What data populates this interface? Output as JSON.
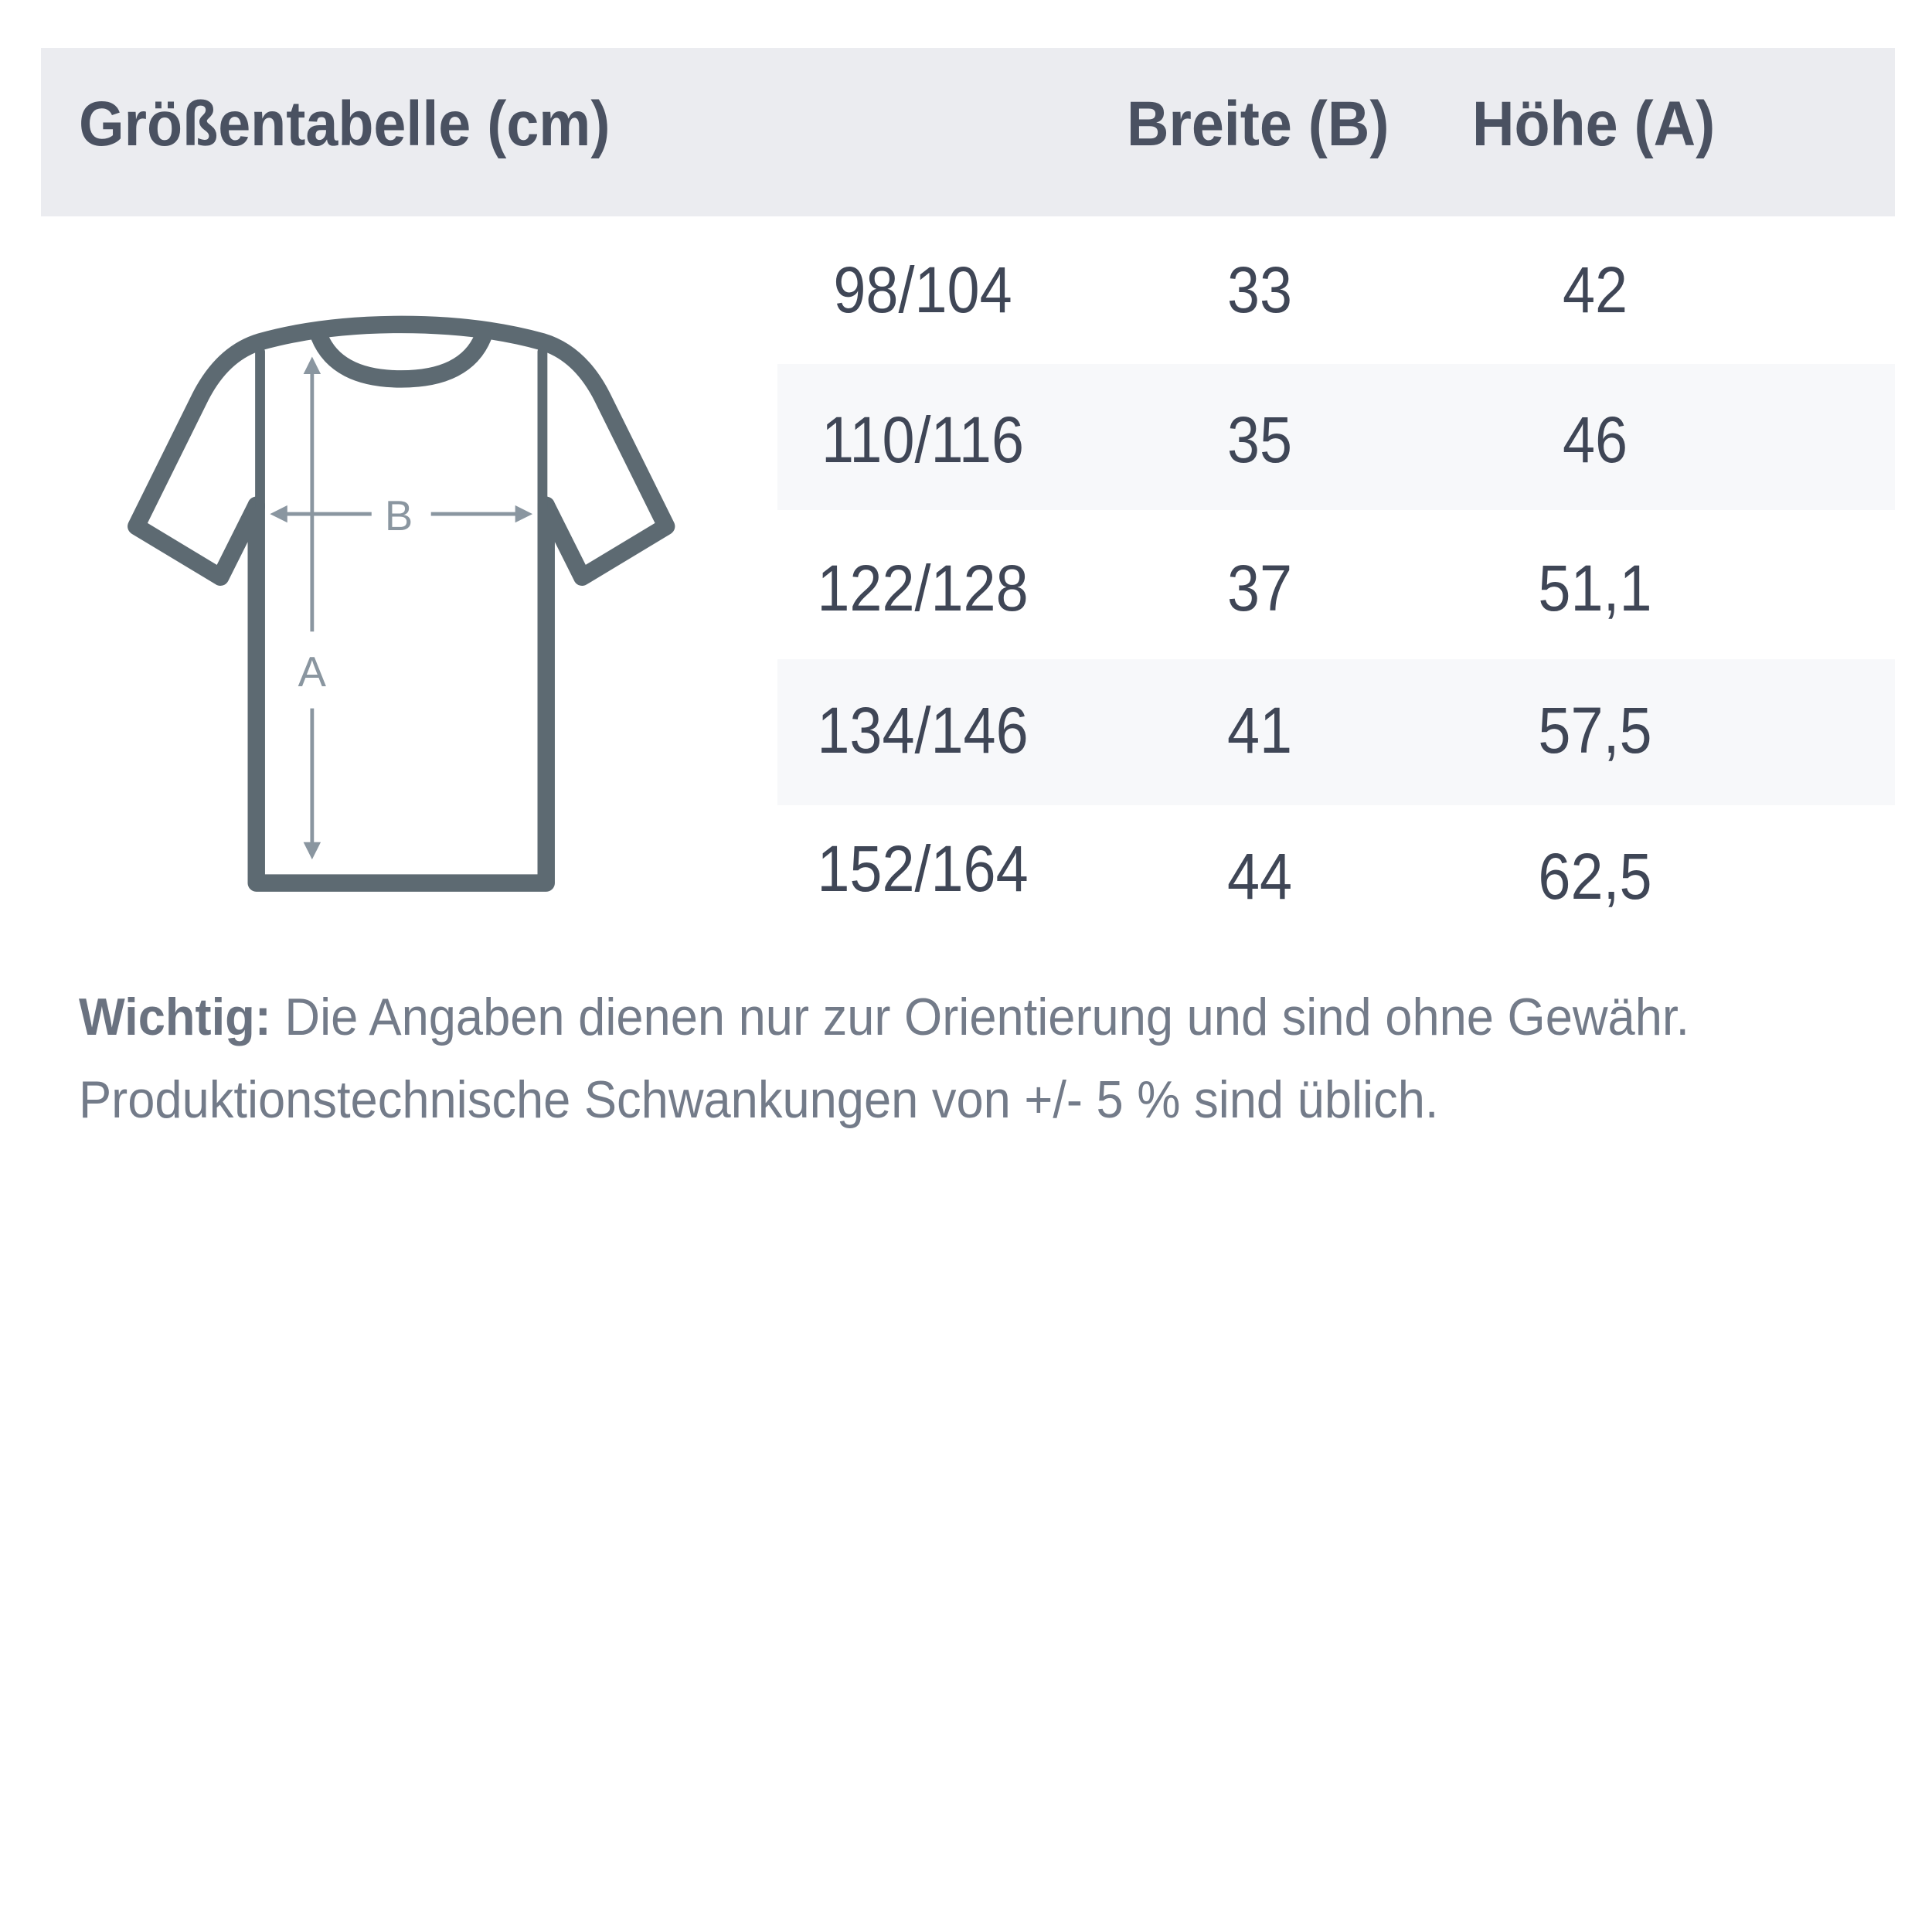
{
  "header": {
    "title": "Größentabelle (cm)",
    "col_width": "Breite (B)",
    "col_height": "Höhe (A)"
  },
  "rows": [
    {
      "size": "98/104",
      "width": "33",
      "height": "42"
    },
    {
      "size": "110/116",
      "width": "35",
      "height": "46"
    },
    {
      "size": "122/128",
      "width": "37",
      "height": "51,1"
    },
    {
      "size": "134/146",
      "width": "41",
      "height": "57,5"
    },
    {
      "size": "152/164",
      "width": "44",
      "height": "62,5"
    }
  ],
  "diagram": {
    "label_width": "B",
    "label_height": "A",
    "icon": "t-shirt-icon"
  },
  "note": {
    "label": "Wichtig:",
    "line1": "Die Angaben dienen nur zur Orientierung und sind ohne Gewähr.",
    "line2": "Produktionstechnische Schwankungen von +/- 5 % sind üblich."
  },
  "colors": {
    "header_bg": "#ebecf0",
    "stripe_bg": "#f7f8fa",
    "shirt": "#5d6a72",
    "arrows": "#8a96a0",
    "text": "#4a5161"
  }
}
